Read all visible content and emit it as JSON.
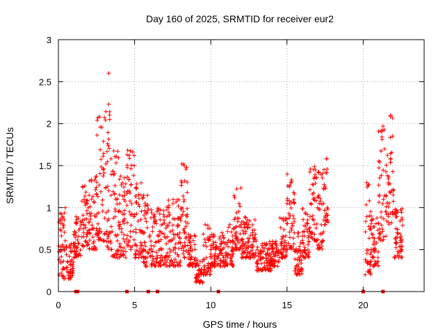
{
  "chart_data": {
    "type": "scatter",
    "title": "Day 160 of 2025, SRMTID for receiver eur2",
    "xlabel": "GPS time / hours",
    "ylabel": "SRMTID / TECUs",
    "xlim": [
      0,
      24
    ],
    "ylim": [
      0,
      3
    ],
    "xticks": [
      0,
      5,
      10,
      15,
      20
    ],
    "yticks": [
      0,
      0.5,
      1,
      1.5,
      2,
      2.5,
      3
    ],
    "xtick_labels": [
      "0",
      "5",
      "10",
      "15",
      "20"
    ],
    "ytick_labels": [
      "0",
      "0.5",
      "1",
      "1.5",
      "2",
      "2.5",
      "3"
    ],
    "grid": true,
    "marker": "+",
    "color": "#ff0000",
    "series": [
      {
        "name": "SRMTID",
        "note": "approximate envelope of dense scatter; [start_hour, end_hour, low_tecu, high_tecu]",
        "envelope": [
          [
            0.0,
            0.5,
            0.15,
            1.0
          ],
          [
            0.5,
            1.0,
            0.15,
            0.6
          ],
          [
            1.0,
            1.5,
            0.4,
            0.9
          ],
          [
            1.5,
            2.0,
            0.5,
            1.3
          ],
          [
            2.0,
            2.5,
            0.5,
            1.4
          ],
          [
            2.5,
            3.0,
            0.6,
            2.1
          ],
          [
            3.0,
            3.5,
            0.5,
            2.2
          ],
          [
            3.5,
            4.0,
            0.4,
            1.7
          ],
          [
            4.0,
            4.5,
            0.4,
            1.4
          ],
          [
            4.5,
            5.0,
            0.5,
            1.8
          ],
          [
            5.0,
            5.5,
            0.4,
            1.3
          ],
          [
            5.5,
            6.0,
            0.3,
            1.2
          ],
          [
            6.0,
            7.0,
            0.3,
            1.0
          ],
          [
            7.0,
            8.0,
            0.3,
            1.1
          ],
          [
            8.0,
            8.5,
            0.4,
            1.55
          ],
          [
            8.5,
            9.0,
            0.3,
            0.7
          ],
          [
            9.0,
            9.5,
            0.1,
            0.4
          ],
          [
            9.5,
            10.0,
            0.2,
            0.8
          ],
          [
            10.0,
            11.0,
            0.3,
            0.7
          ],
          [
            11.0,
            11.5,
            0.3,
            0.8
          ],
          [
            11.5,
            12.0,
            0.5,
            1.25
          ],
          [
            12.0,
            13.0,
            0.4,
            0.9
          ],
          [
            13.0,
            14.0,
            0.25,
            0.6
          ],
          [
            14.0,
            14.5,
            0.3,
            0.6
          ],
          [
            14.5,
            15.0,
            0.4,
            0.9
          ],
          [
            15.0,
            15.5,
            0.5,
            1.4
          ],
          [
            15.5,
            16.0,
            0.2,
            0.7
          ],
          [
            16.0,
            16.5,
            0.4,
            1.0
          ],
          [
            16.5,
            17.0,
            0.6,
            1.5
          ],
          [
            17.0,
            17.5,
            0.5,
            1.55
          ],
          [
            17.5,
            17.7,
            0.8,
            1.6
          ],
          [
            20.1,
            20.5,
            0.2,
            1.3
          ],
          [
            20.5,
            21.0,
            0.3,
            0.9
          ],
          [
            21.0,
            21.5,
            0.6,
            2.0
          ],
          [
            21.5,
            22.0,
            0.8,
            2.1
          ],
          [
            22.0,
            22.6,
            0.4,
            1.0
          ]
        ],
        "peaks": [
          {
            "x": 3.3,
            "y": 2.6
          },
          {
            "x": 3.3,
            "y": 2.23
          },
          {
            "x": 2.7,
            "y": 2.08
          },
          {
            "x": 21.8,
            "y": 2.1
          },
          {
            "x": 21.3,
            "y": 1.97
          },
          {
            "x": 17.6,
            "y": 1.58
          },
          {
            "x": 8.1,
            "y": 1.52
          }
        ]
      },
      {
        "name": "data gaps",
        "note": "small squares on the zero line",
        "x": [
          1.15,
          1.25,
          4.5,
          5.9,
          6.5,
          10.5,
          20.0,
          21.3
        ]
      }
    ]
  }
}
